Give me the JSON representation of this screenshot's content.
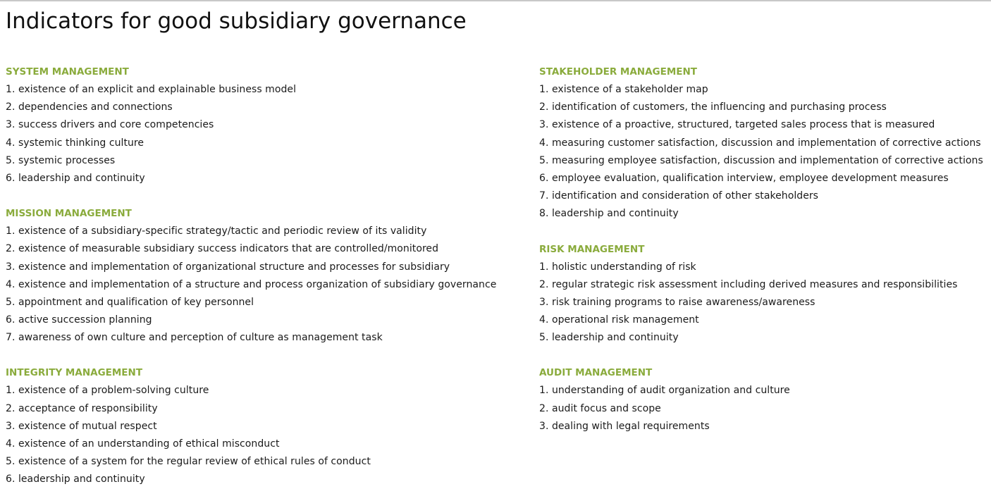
{
  "page": {
    "title": "Indicators for good subsidiary governance"
  },
  "colors": {
    "heading": "#8aab3c",
    "text": "#1a1a1a"
  },
  "left_column": [
    {
      "heading": "SYSTEM MANAGEMENT",
      "items": [
        "1. existence of an explicit and explainable business model",
        "2. dependencies and connections",
        "3. success drivers and core competencies",
        "4. systemic thinking culture",
        "5. systemic processes",
        "6. leadership and continuity"
      ]
    },
    {
      "heading": "MISSION MANAGEMENT",
      "items": [
        "1. existence of a subsidiary-specific strategy/tactic and periodic review of its validity",
        "2. existence of measurable subsidiary success indicators that are controlled/monitored",
        "3. existence and implementation of organizational structure and processes for subsidiary",
        "4. existence and implementation of a structure and process organization of subsidiary governance",
        "5. appointment and qualification of key personnel",
        "6. active succession planning",
        "7. awareness of own culture and perception of culture as management task"
      ]
    },
    {
      "heading": "INTEGRITY MANAGEMENT",
      "items": [
        "1. existence of a problem-solving culture",
        "2. acceptance of responsibility",
        "3. existence of mutual respect",
        "4. existence of an understanding of ethical misconduct",
        "5. existence of a system for the regular review of ethical rules of conduct",
        "6. leadership and continuity"
      ]
    }
  ],
  "right_column": [
    {
      "heading": "STAKEHOLDER MANAGEMENT",
      "items": [
        "1. existence of a stakeholder map",
        "2. identification of customers, the influencing and purchasing process",
        "3. existence of a proactive, structured, targeted sales process that is measured",
        "4. measuring customer satisfaction, discussion and implementation of corrective actions",
        "5. measuring employee satisfaction, discussion and implementation of corrective actions",
        "6. employee evaluation, qualification interview, employee development measures",
        "7. identification and consideration of other stakeholders",
        "8. leadership and continuity"
      ]
    },
    {
      "heading": "RISK MANAGEMENT",
      "items": [
        "1. holistic understanding of risk",
        "2. regular strategic risk assessment including derived measures and responsibilities",
        "3. risk training programs to raise awareness/awareness",
        "4. operational risk management",
        "5. leadership and continuity"
      ]
    },
    {
      "heading": "AUDIT MANAGEMENT",
      "items": [
        "1. understanding of audit organization and culture",
        "2. audit focus and scope",
        "3. dealing with legal requirements"
      ]
    }
  ]
}
